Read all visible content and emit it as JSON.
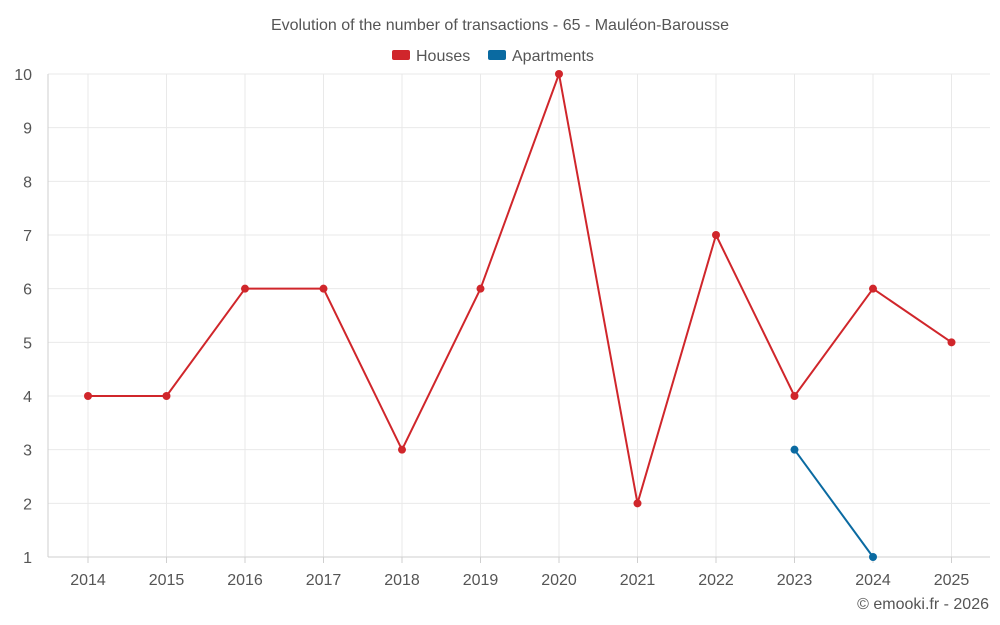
{
  "chart_data": {
    "type": "line",
    "title": "Evolution of the number of transactions - 65 - Mauléon-Barousse",
    "categories": [
      "2014",
      "2015",
      "2016",
      "2017",
      "2018",
      "2019",
      "2020",
      "2021",
      "2022",
      "2023",
      "2024",
      "2025"
    ],
    "yticks": [
      "1",
      "2",
      "3",
      "4",
      "5",
      "6",
      "7",
      "8",
      "9",
      "10"
    ],
    "ylim": [
      1,
      10
    ],
    "grid": true,
    "legend_position": "top-center",
    "series": [
      {
        "name": "Houses",
        "color": "#d0262b",
        "values": [
          4,
          4,
          6,
          6,
          3,
          6,
          10,
          2,
          7,
          4,
          6,
          5
        ]
      },
      {
        "name": "Apartments",
        "color": "#0a6aa1",
        "values": [
          null,
          null,
          null,
          null,
          null,
          null,
          null,
          null,
          null,
          3,
          1,
          null
        ]
      }
    ],
    "credit": "© emooki.fr - 2026"
  }
}
